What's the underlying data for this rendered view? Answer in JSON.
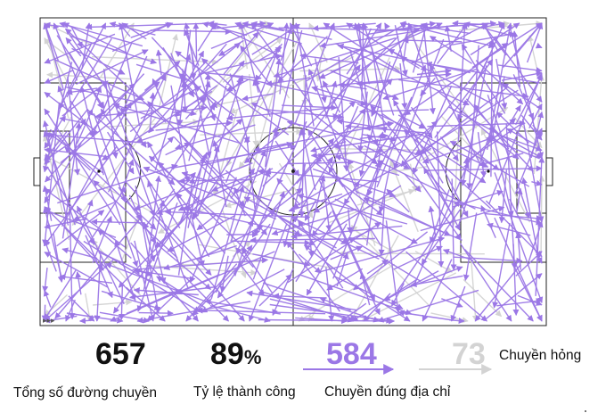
{
  "chart_data": {
    "type": "pass map",
    "series": [
      {
        "key": "completed",
        "color": "#9b77e6"
      },
      {
        "key": "failed",
        "color": "#d3d3d3"
      }
    ],
    "completed_count": 584,
    "failed_count": 73,
    "total_count": 657,
    "seed": 17
  },
  "stats": {
    "total_passes": {
      "value": "657",
      "label": "Tổng số đường chuyền"
    },
    "accuracy": {
      "value": "89",
      "unit": "%",
      "label": "Tỷ lệ thành công"
    },
    "completed": {
      "value": "584",
      "label": "Chuyền đúng địa chỉ"
    },
    "failed": {
      "value": "73",
      "label": "Chuyền hỏng"
    }
  },
  "direction_indicator": "▸▸▸",
  "colors": {
    "completed": "#9b77e6",
    "failed": "#d3d3d3",
    "pitch_line": "#222222",
    "text": "#111111"
  }
}
